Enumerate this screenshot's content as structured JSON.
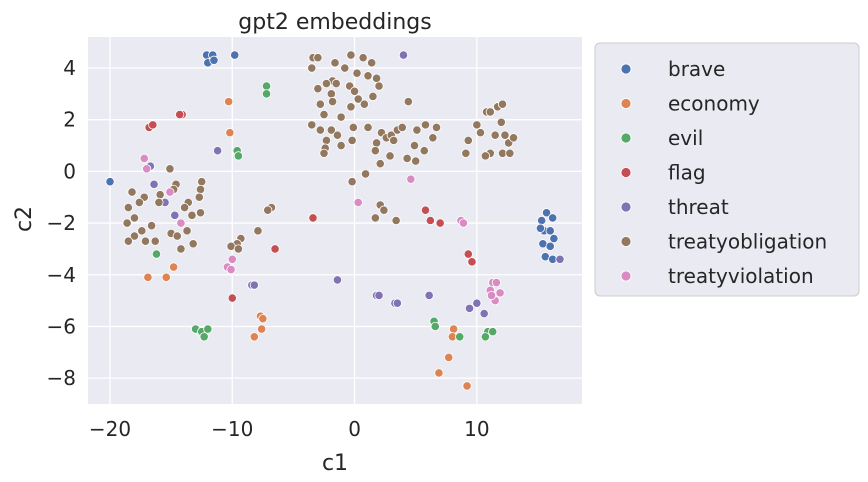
{
  "chart_data": {
    "type": "scatter",
    "title": "gpt2 embeddings",
    "xlabel": "c1",
    "ylabel": "c2",
    "xlim": [
      -21.8,
      18.6
    ],
    "ylim": [
      -9.0,
      5.2
    ],
    "x_ticks": [
      -20,
      -10,
      0,
      10
    ],
    "x_tick_labels": [
      "−20",
      "−10",
      "0",
      "10"
    ],
    "y_ticks": [
      4,
      2,
      0,
      -2,
      -4,
      -6,
      -8
    ],
    "y_tick_labels": [
      "4",
      "2",
      "0",
      "−2",
      "−4",
      "−6",
      "−8"
    ],
    "grid": true,
    "legend_position": "outside-right",
    "series": [
      {
        "name": "brave",
        "color": "#4c72b0",
        "points": [
          [
            -20.0,
            -0.4
          ],
          [
            -12.1,
            4.5
          ],
          [
            -11.6,
            4.5
          ],
          [
            -12.0,
            4.2
          ],
          [
            -11.5,
            4.3
          ],
          [
            -9.8,
            4.5
          ],
          [
            15.7,
            -1.6
          ],
          [
            15.3,
            -1.9
          ],
          [
            16.2,
            -1.8
          ],
          [
            15.5,
            -2.3
          ],
          [
            16.0,
            -2.3
          ],
          [
            15.2,
            -2.2
          ],
          [
            16.3,
            -2.6
          ],
          [
            15.4,
            -2.8
          ],
          [
            16.0,
            -2.9
          ],
          [
            15.6,
            -3.3
          ],
          [
            16.2,
            -3.4
          ]
        ]
      },
      {
        "name": "economy",
        "color": "#dd8452",
        "points": [
          [
            -10.3,
            2.7
          ],
          [
            -10.2,
            1.5
          ],
          [
            -16.9,
            -4.1
          ],
          [
            -15.4,
            -4.1
          ],
          [
            -14.8,
            -3.7
          ],
          [
            -7.7,
            -5.6
          ],
          [
            -7.5,
            -5.7
          ],
          [
            -7.6,
            -6.1
          ],
          [
            -8.2,
            -6.4
          ],
          [
            8.1,
            -6.1
          ],
          [
            8.0,
            -6.4
          ],
          [
            7.7,
            -7.2
          ],
          [
            6.9,
            -7.8
          ],
          [
            9.2,
            -8.3
          ]
        ]
      },
      {
        "name": "evil",
        "color": "#55a868",
        "points": [
          [
            -7.2,
            3.3
          ],
          [
            -7.2,
            3.0
          ],
          [
            -9.6,
            0.8
          ],
          [
            -9.5,
            0.6
          ],
          [
            -16.2,
            -3.2
          ],
          [
            -13.0,
            -6.1
          ],
          [
            -12.5,
            -6.2
          ],
          [
            -12.0,
            -6.1
          ],
          [
            -12.3,
            -6.4
          ],
          [
            6.5,
            -5.8
          ],
          [
            6.6,
            -6.0
          ],
          [
            8.6,
            -6.4
          ],
          [
            10.9,
            -6.2
          ],
          [
            11.3,
            -6.2
          ],
          [
            10.7,
            -6.4
          ]
        ]
      },
      {
        "name": "flag",
        "color": "#c44e52",
        "points": [
          [
            -16.8,
            1.7
          ],
          [
            -16.5,
            1.8
          ],
          [
            -14.1,
            2.2
          ],
          [
            -14.3,
            2.2
          ],
          [
            -3.4,
            -1.8
          ],
          [
            -6.5,
            -3.0
          ],
          [
            -10.0,
            -4.9
          ],
          [
            5.8,
            -1.5
          ],
          [
            6.2,
            -1.9
          ],
          [
            7.0,
            -2.0
          ],
          [
            9.3,
            -3.2
          ],
          [
            9.6,
            -3.5
          ]
        ]
      },
      {
        "name": "threat",
        "color": "#8172b3",
        "points": [
          [
            -11.2,
            0.8
          ],
          [
            -16.7,
            0.2
          ],
          [
            -16.4,
            -0.5
          ],
          [
            -15.5,
            -1.2
          ],
          [
            -14.7,
            -1.7
          ],
          [
            -8.4,
            -4.4
          ],
          [
            -8.2,
            -4.4
          ],
          [
            -1.4,
            -4.2
          ],
          [
            1.8,
            -4.8
          ],
          [
            2.0,
            -4.8
          ],
          [
            3.3,
            -5.1
          ],
          [
            3.5,
            -5.1
          ],
          [
            6.1,
            -4.8
          ],
          [
            9.4,
            -5.3
          ],
          [
            10.0,
            -5.1
          ],
          [
            10.6,
            -5.5
          ],
          [
            4.0,
            4.5
          ],
          [
            16.8,
            -3.4
          ]
        ]
      },
      {
        "name": "treatyobligation",
        "color": "#937860",
        "points": [
          [
            -3.4,
            4.4
          ],
          [
            -3.0,
            4.4
          ],
          [
            -1.6,
            4.2
          ],
          [
            -0.3,
            4.5
          ],
          [
            0.7,
            4.4
          ],
          [
            1.4,
            4.2
          ],
          [
            -3.5,
            4.0
          ],
          [
            -0.8,
            4.0
          ],
          [
            0.2,
            3.8
          ],
          [
            1.1,
            3.7
          ],
          [
            1.8,
            3.6
          ],
          [
            -1.8,
            3.5
          ],
          [
            -1.5,
            3.4
          ],
          [
            -0.4,
            3.3
          ],
          [
            0.0,
            3.1
          ],
          [
            2.0,
            3.3
          ],
          [
            -2.3,
            3.4
          ],
          [
            -3.0,
            3.2
          ],
          [
            -1.9,
            3.0
          ],
          [
            0.3,
            2.8
          ],
          [
            1.5,
            2.9
          ],
          [
            -2.8,
            2.6
          ],
          [
            -1.8,
            2.7
          ],
          [
            -0.3,
            2.5
          ],
          [
            0.8,
            2.6
          ],
          [
            -2.5,
            2.2
          ],
          [
            -1.1,
            2.1
          ],
          [
            -3.5,
            1.8
          ],
          [
            -2.8,
            1.6
          ],
          [
            -1.9,
            1.6
          ],
          [
            -1.4,
            1.4
          ],
          [
            -0.1,
            1.7
          ],
          [
            1.1,
            1.7
          ],
          [
            2.2,
            1.5
          ],
          [
            2.6,
            1.3
          ],
          [
            3.0,
            1.4
          ],
          [
            3.5,
            1.6
          ],
          [
            3.9,
            1.7
          ],
          [
            -2.3,
            1.2
          ],
          [
            -1.1,
            1.0
          ],
          [
            1.8,
            1.1
          ],
          [
            3.2,
            1.2
          ],
          [
            -2.4,
            0.9
          ],
          [
            -0.2,
            1.2
          ],
          [
            4.4,
            2.7
          ],
          [
            5.1,
            1.6
          ],
          [
            5.8,
            1.8
          ],
          [
            6.4,
            1.3
          ],
          [
            6.7,
            1.7
          ],
          [
            -2.5,
            0.7
          ],
          [
            4.9,
            1.0
          ],
          [
            2.9,
            0.6
          ],
          [
            5.7,
            0.8
          ],
          [
            4.3,
            0.5
          ],
          [
            5.0,
            0.4
          ],
          [
            2.1,
            0.3
          ],
          [
            1.7,
            0.8
          ],
          [
            0.9,
            -0.1
          ],
          [
            -0.2,
            -0.4
          ],
          [
            9.1,
            0.7
          ],
          [
            9.3,
            1.2
          ],
          [
            10.3,
            1.5
          ],
          [
            10.8,
            2.3
          ],
          [
            11.1,
            2.3
          ],
          [
            11.7,
            2.5
          ],
          [
            12.1,
            2.6
          ],
          [
            12.0,
            1.9
          ],
          [
            10.0,
            1.8
          ],
          [
            11.5,
            1.4
          ],
          [
            12.3,
            1.4
          ],
          [
            12.6,
            1.1
          ],
          [
            13.0,
            1.3
          ],
          [
            11.1,
            0.7
          ],
          [
            12.1,
            0.7
          ],
          [
            12.7,
            0.7
          ],
          [
            10.7,
            0.6
          ],
          [
            2.1,
            -1.3
          ],
          [
            2.4,
            -1.5
          ],
          [
            1.7,
            -1.8
          ],
          [
            3.4,
            -1.9
          ],
          [
            -6.8,
            -1.4
          ],
          [
            -7.1,
            -1.5
          ],
          [
            -7.9,
            -2.3
          ],
          [
            -12.5,
            -0.4
          ],
          [
            -12.6,
            -0.7
          ],
          [
            -12.7,
            -1.0
          ],
          [
            -14.6,
            -0.5
          ],
          [
            -14.8,
            -0.7
          ],
          [
            -15.1,
            0.1
          ],
          [
            -15.9,
            -0.9
          ],
          [
            -16.0,
            -1.2
          ],
          [
            -17.2,
            -1.0
          ],
          [
            -17.6,
            -1.2
          ],
          [
            -18.2,
            -0.8
          ],
          [
            -18.5,
            -1.4
          ],
          [
            -18.6,
            -2.0
          ],
          [
            -18.0,
            -1.8
          ],
          [
            -17.4,
            -2.3
          ],
          [
            -16.6,
            -2.1
          ],
          [
            -18.0,
            -2.5
          ],
          [
            -18.5,
            -2.7
          ],
          [
            -17.1,
            -2.7
          ],
          [
            -16.3,
            -2.7
          ],
          [
            -15.0,
            -2.4
          ],
          [
            -14.5,
            -2.5
          ],
          [
            -13.7,
            -2.3
          ],
          [
            -13.3,
            -1.7
          ],
          [
            -12.6,
            -1.6
          ],
          [
            -13.6,
            -1.2
          ],
          [
            -13.9,
            -1.4
          ],
          [
            -13.2,
            -2.8
          ],
          [
            -14.2,
            -3.0
          ],
          [
            -9.3,
            -2.6
          ],
          [
            -9.6,
            -2.8
          ],
          [
            -10.1,
            -2.9
          ],
          [
            -9.5,
            -3.0
          ]
        ]
      },
      {
        "name": "treatyviolation",
        "color": "#da8bc3",
        "points": [
          [
            -17.2,
            0.5
          ],
          [
            -17.0,
            0.1
          ],
          [
            -15.1,
            -0.8
          ],
          [
            -14.2,
            -2.0
          ],
          [
            -10.0,
            -3.4
          ],
          [
            -10.4,
            -3.7
          ],
          [
            -10.1,
            -3.8
          ],
          [
            0.3,
            -1.2
          ],
          [
            4.6,
            -0.3
          ],
          [
            8.7,
            -1.9
          ],
          [
            8.9,
            -2.0
          ],
          [
            11.3,
            -4.3
          ],
          [
            11.6,
            -4.3
          ],
          [
            11.1,
            -4.6
          ],
          [
            11.9,
            -4.7
          ],
          [
            11.5,
            -5.0
          ],
          [
            11.2,
            -4.8
          ]
        ]
      }
    ]
  }
}
